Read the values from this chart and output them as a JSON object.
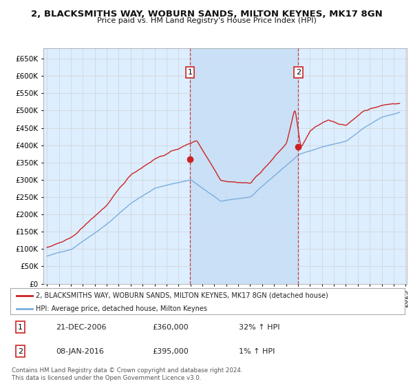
{
  "title": "2, BLACKSMITHS WAY, WOBURN SANDS, MILTON KEYNES, MK17 8GN",
  "subtitle": "Price paid vs. HM Land Registry's House Price Index (HPI)",
  "ylim": [
    0,
    680000
  ],
  "yticks": [
    0,
    50000,
    100000,
    150000,
    200000,
    250000,
    300000,
    350000,
    400000,
    450000,
    500000,
    550000,
    600000,
    650000
  ],
  "ytick_labels": [
    "£0",
    "£50K",
    "£100K",
    "£150K",
    "£200K",
    "£250K",
    "£300K",
    "£350K",
    "£400K",
    "£450K",
    "£500K",
    "£550K",
    "£600K",
    "£650K"
  ],
  "background_color": "#ffffff",
  "plot_bg_color": "#ddeeff",
  "grid_color": "#cccccc",
  "red_line_color": "#cc2222",
  "blue_line_color": "#7aaddd",
  "vline_color": "#cc2222",
  "shade_color": "#c8dff5",
  "legend_label_red": "2, BLACKSMITHS WAY, WOBURN SANDS, MILTON KEYNES, MK17 8GN (detached house)",
  "legend_label_blue": "HPI: Average price, detached house, Milton Keynes",
  "sale1_date": "21-DEC-2006",
  "sale1_price": "£360,000",
  "sale1_hpi": "32% ↑ HPI",
  "sale2_date": "08-JAN-2016",
  "sale2_price": "£395,000",
  "sale2_hpi": "1% ↑ HPI",
  "footer": "Contains HM Land Registry data © Crown copyright and database right 2024.\nThis data is licensed under the Open Government Licence v3.0.",
  "sale1_x": 2006.97,
  "sale1_y": 360000,
  "sale2_x": 2016.03,
  "sale2_y": 395000,
  "xlim_left": 1994.7,
  "xlim_right": 2025.1
}
